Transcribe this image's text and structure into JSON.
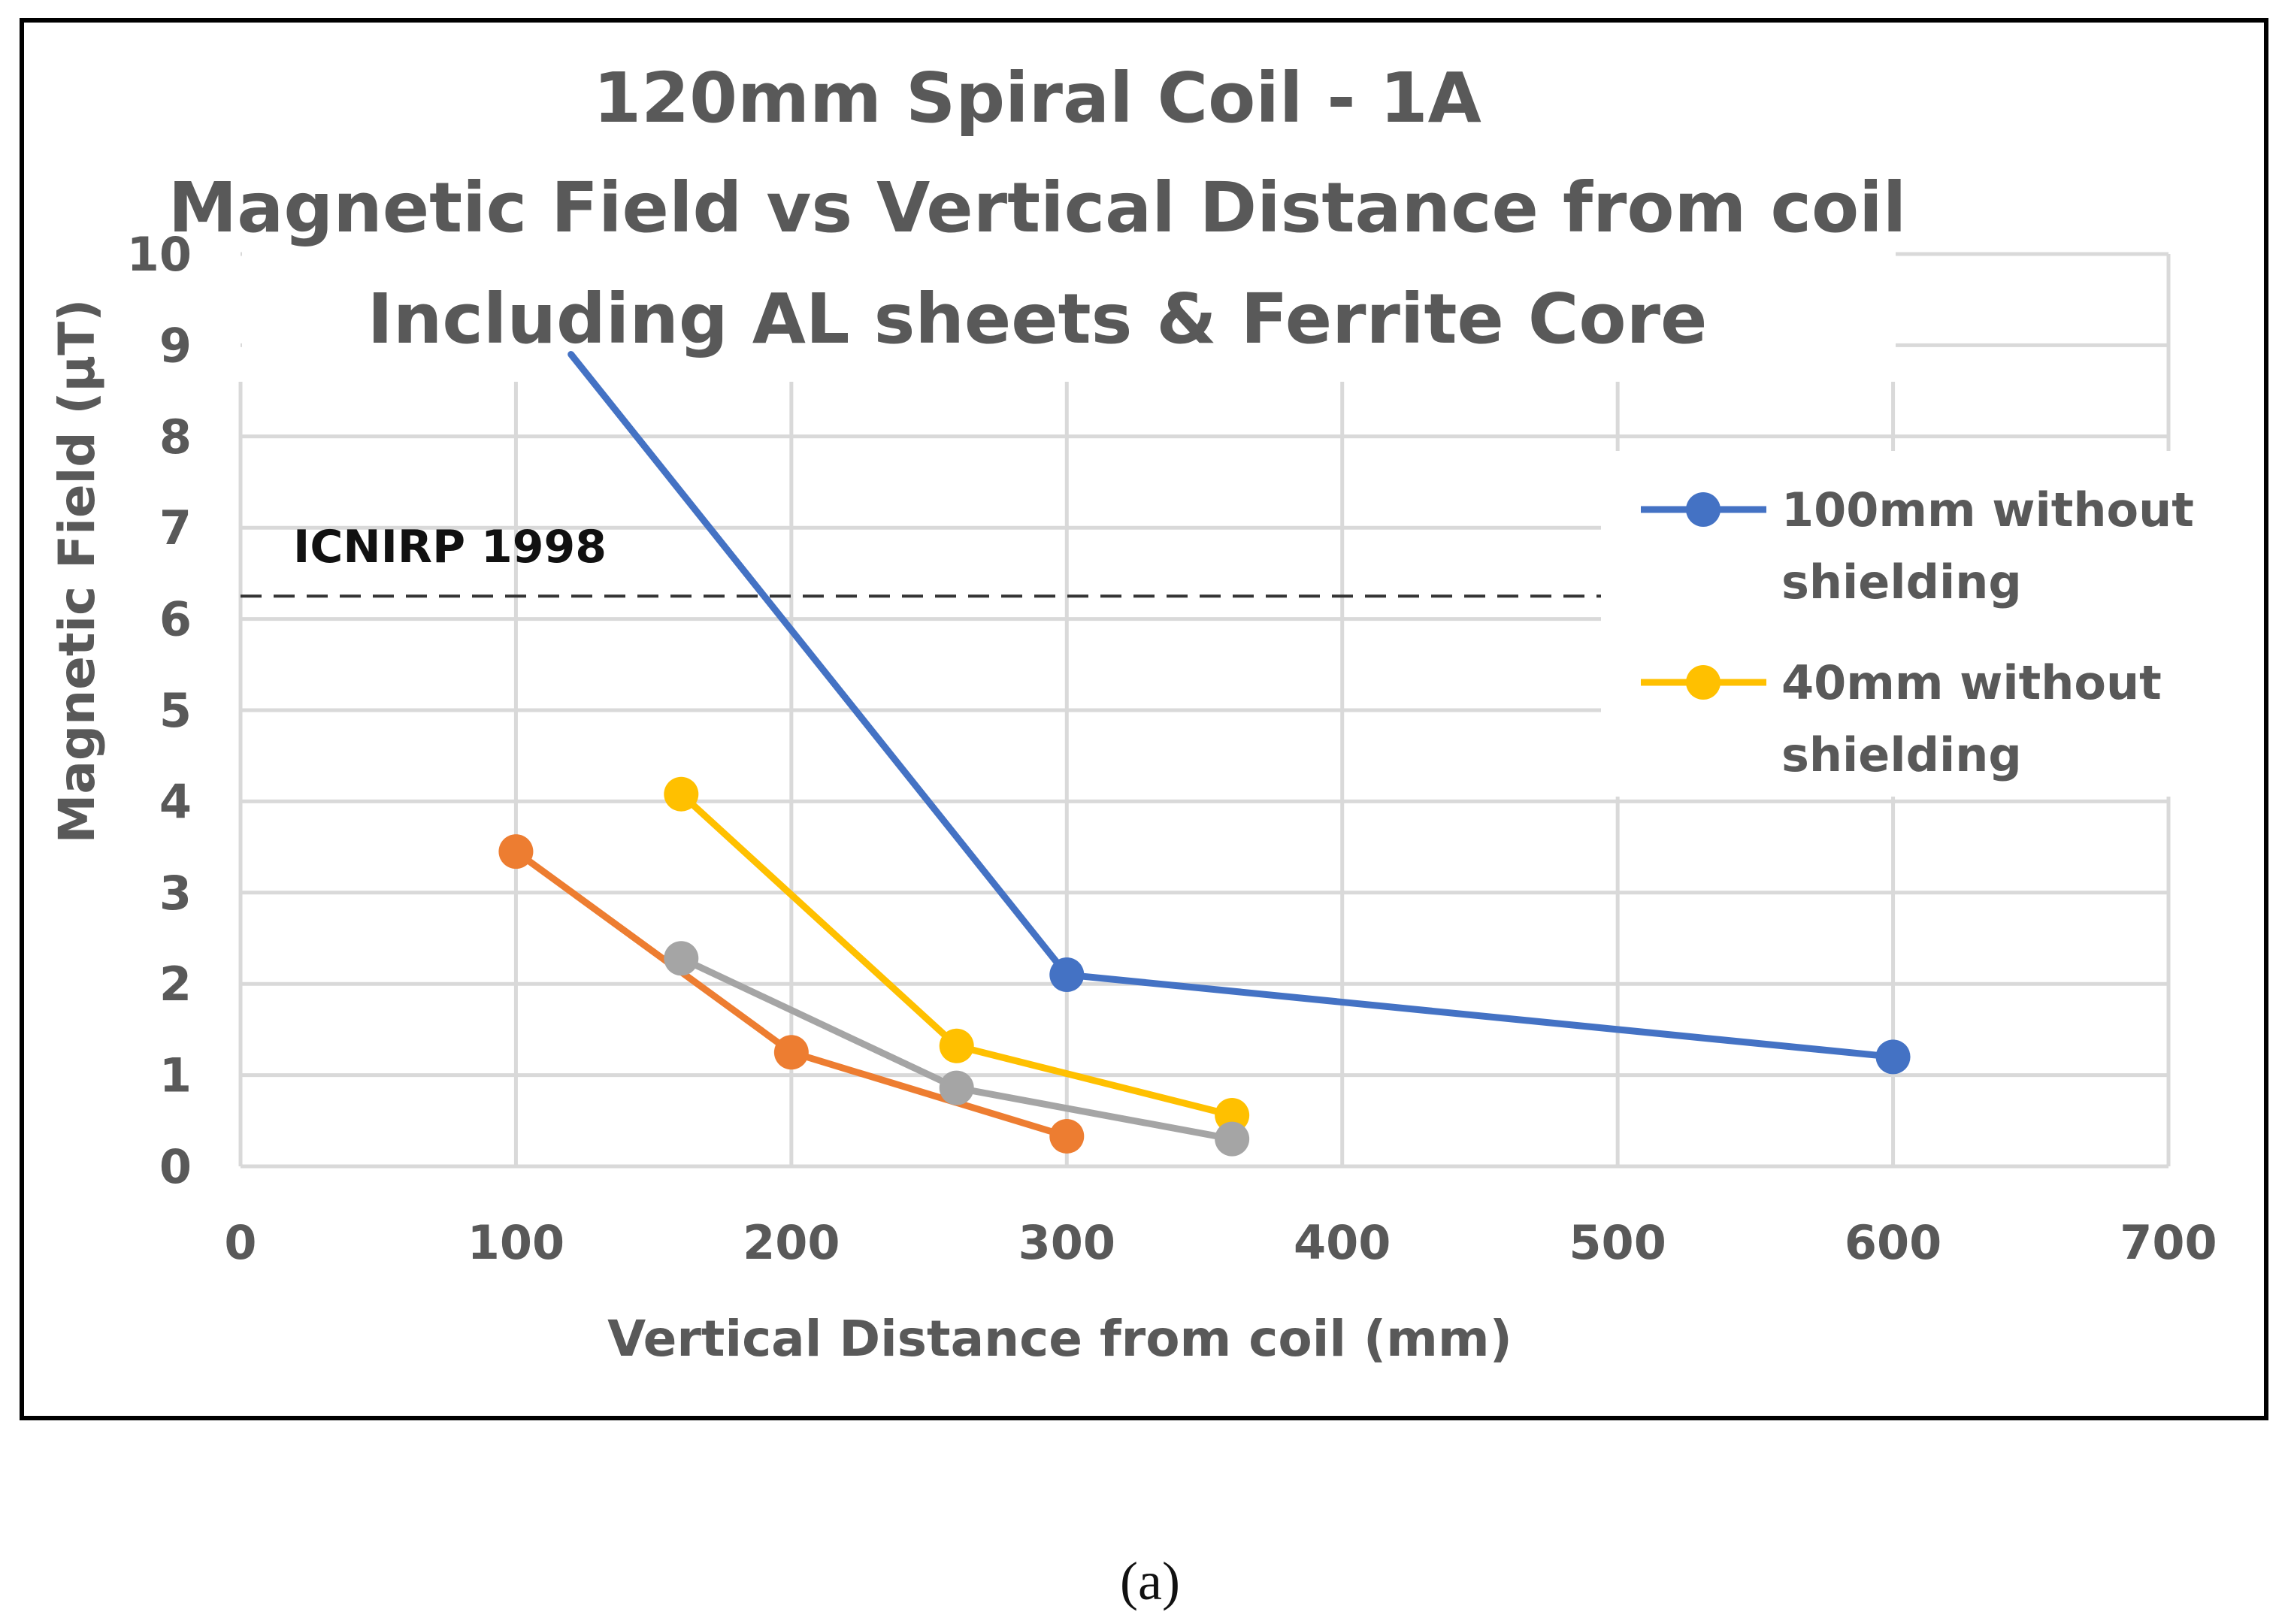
{
  "chart_data": {
    "type": "line",
    "title_lines": [
      "120mm Spiral Coil - 1A",
      "Magnetic Field vs Vertical Distance from coil",
      "Including AL sheets & Ferrite Core"
    ],
    "xlabel": "Vertical Distance from coil (mm)",
    "ylabel": "Magnetic Field  (μT)",
    "xlim": [
      0,
      700
    ],
    "ylim": [
      0,
      10
    ],
    "x_ticks": [
      "0",
      "100",
      "200",
      "300",
      "400",
      "500",
      "600",
      "700"
    ],
    "y_ticks": [
      "0",
      "1",
      "2",
      "3",
      "4",
      "5",
      "6",
      "7",
      "8",
      "9",
      "10"
    ],
    "grid": true,
    "legend_position": "right",
    "series": [
      {
        "name": "100mm without shielding",
        "legend_lines": [
          "100mm without",
          "shielding"
        ],
        "color": "#4472C4",
        "x": [
          120,
          300,
          600
        ],
        "y": [
          8.9,
          2.1,
          1.2
        ],
        "markers": [
          false,
          true,
          true
        ]
      },
      {
        "name": "40mm without shielding",
        "legend_lines": [
          "40mm without",
          "shielding"
        ],
        "color": "#FFC000",
        "x": [
          160,
          260,
          360
        ],
        "y": [
          4.08,
          1.32,
          0.56
        ],
        "markers": [
          true,
          true,
          true
        ]
      },
      {
        "name": "",
        "legend_lines": [],
        "color": "#ED7D31",
        "x": [
          100,
          200,
          300
        ],
        "y": [
          3.45,
          1.25,
          0.33
        ],
        "markers": [
          true,
          true,
          true
        ]
      },
      {
        "name": "",
        "legend_lines": [],
        "color": "#A5A5A5",
        "x": [
          160,
          260,
          360
        ],
        "y": [
          2.28,
          0.86,
          0.3
        ],
        "markers": [
          true,
          true,
          true
        ]
      }
    ],
    "reference_line": {
      "label": "ICNIRP 1998",
      "y": 6.25,
      "style": "dashed",
      "color": "#333333"
    }
  },
  "caption": "(a)"
}
